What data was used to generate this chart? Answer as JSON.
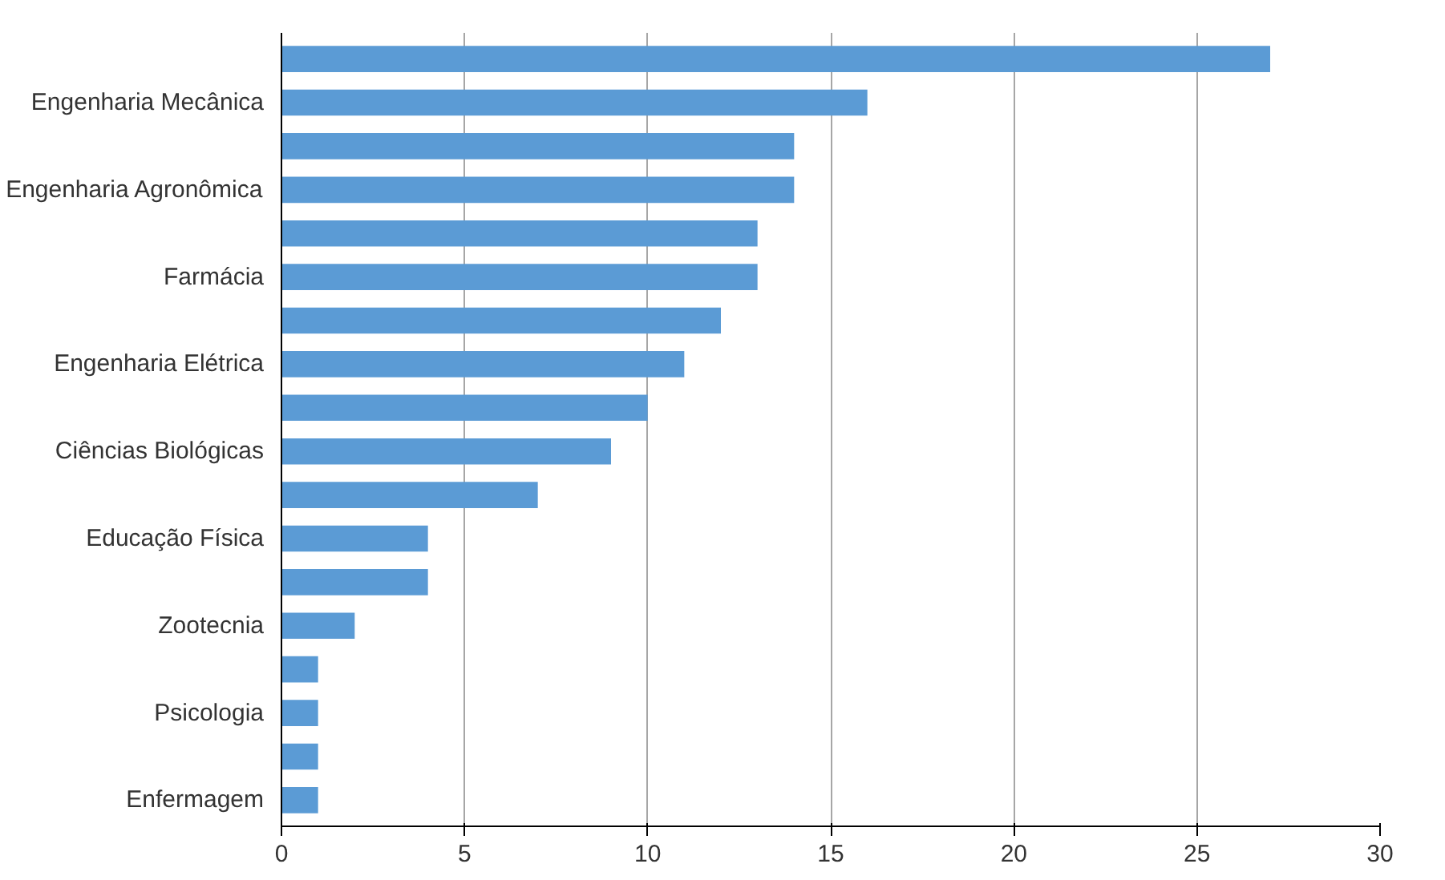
{
  "chart_data": {
    "type": "bar",
    "orientation": "horizontal",
    "categories": [
      null,
      "Engenharia Mecânica",
      null,
      "Engenharia Agronômica",
      null,
      "Farmácia",
      null,
      "Engenharia Elétrica",
      null,
      "Ciências Biológicas",
      null,
      "Educação Física",
      null,
      "Zootecnia",
      null,
      "Psicologia",
      null,
      "Enfermagem"
    ],
    "values": [
      27,
      16,
      14,
      14,
      13,
      13,
      12,
      11,
      10,
      9,
      7,
      4,
      4,
      2,
      1,
      1,
      1,
      1
    ],
    "color": "#5b9bd5",
    "xlim": [
      0,
      30
    ],
    "xticks": [
      0,
      5,
      10,
      15,
      20,
      25,
      30
    ],
    "grid": "x"
  }
}
